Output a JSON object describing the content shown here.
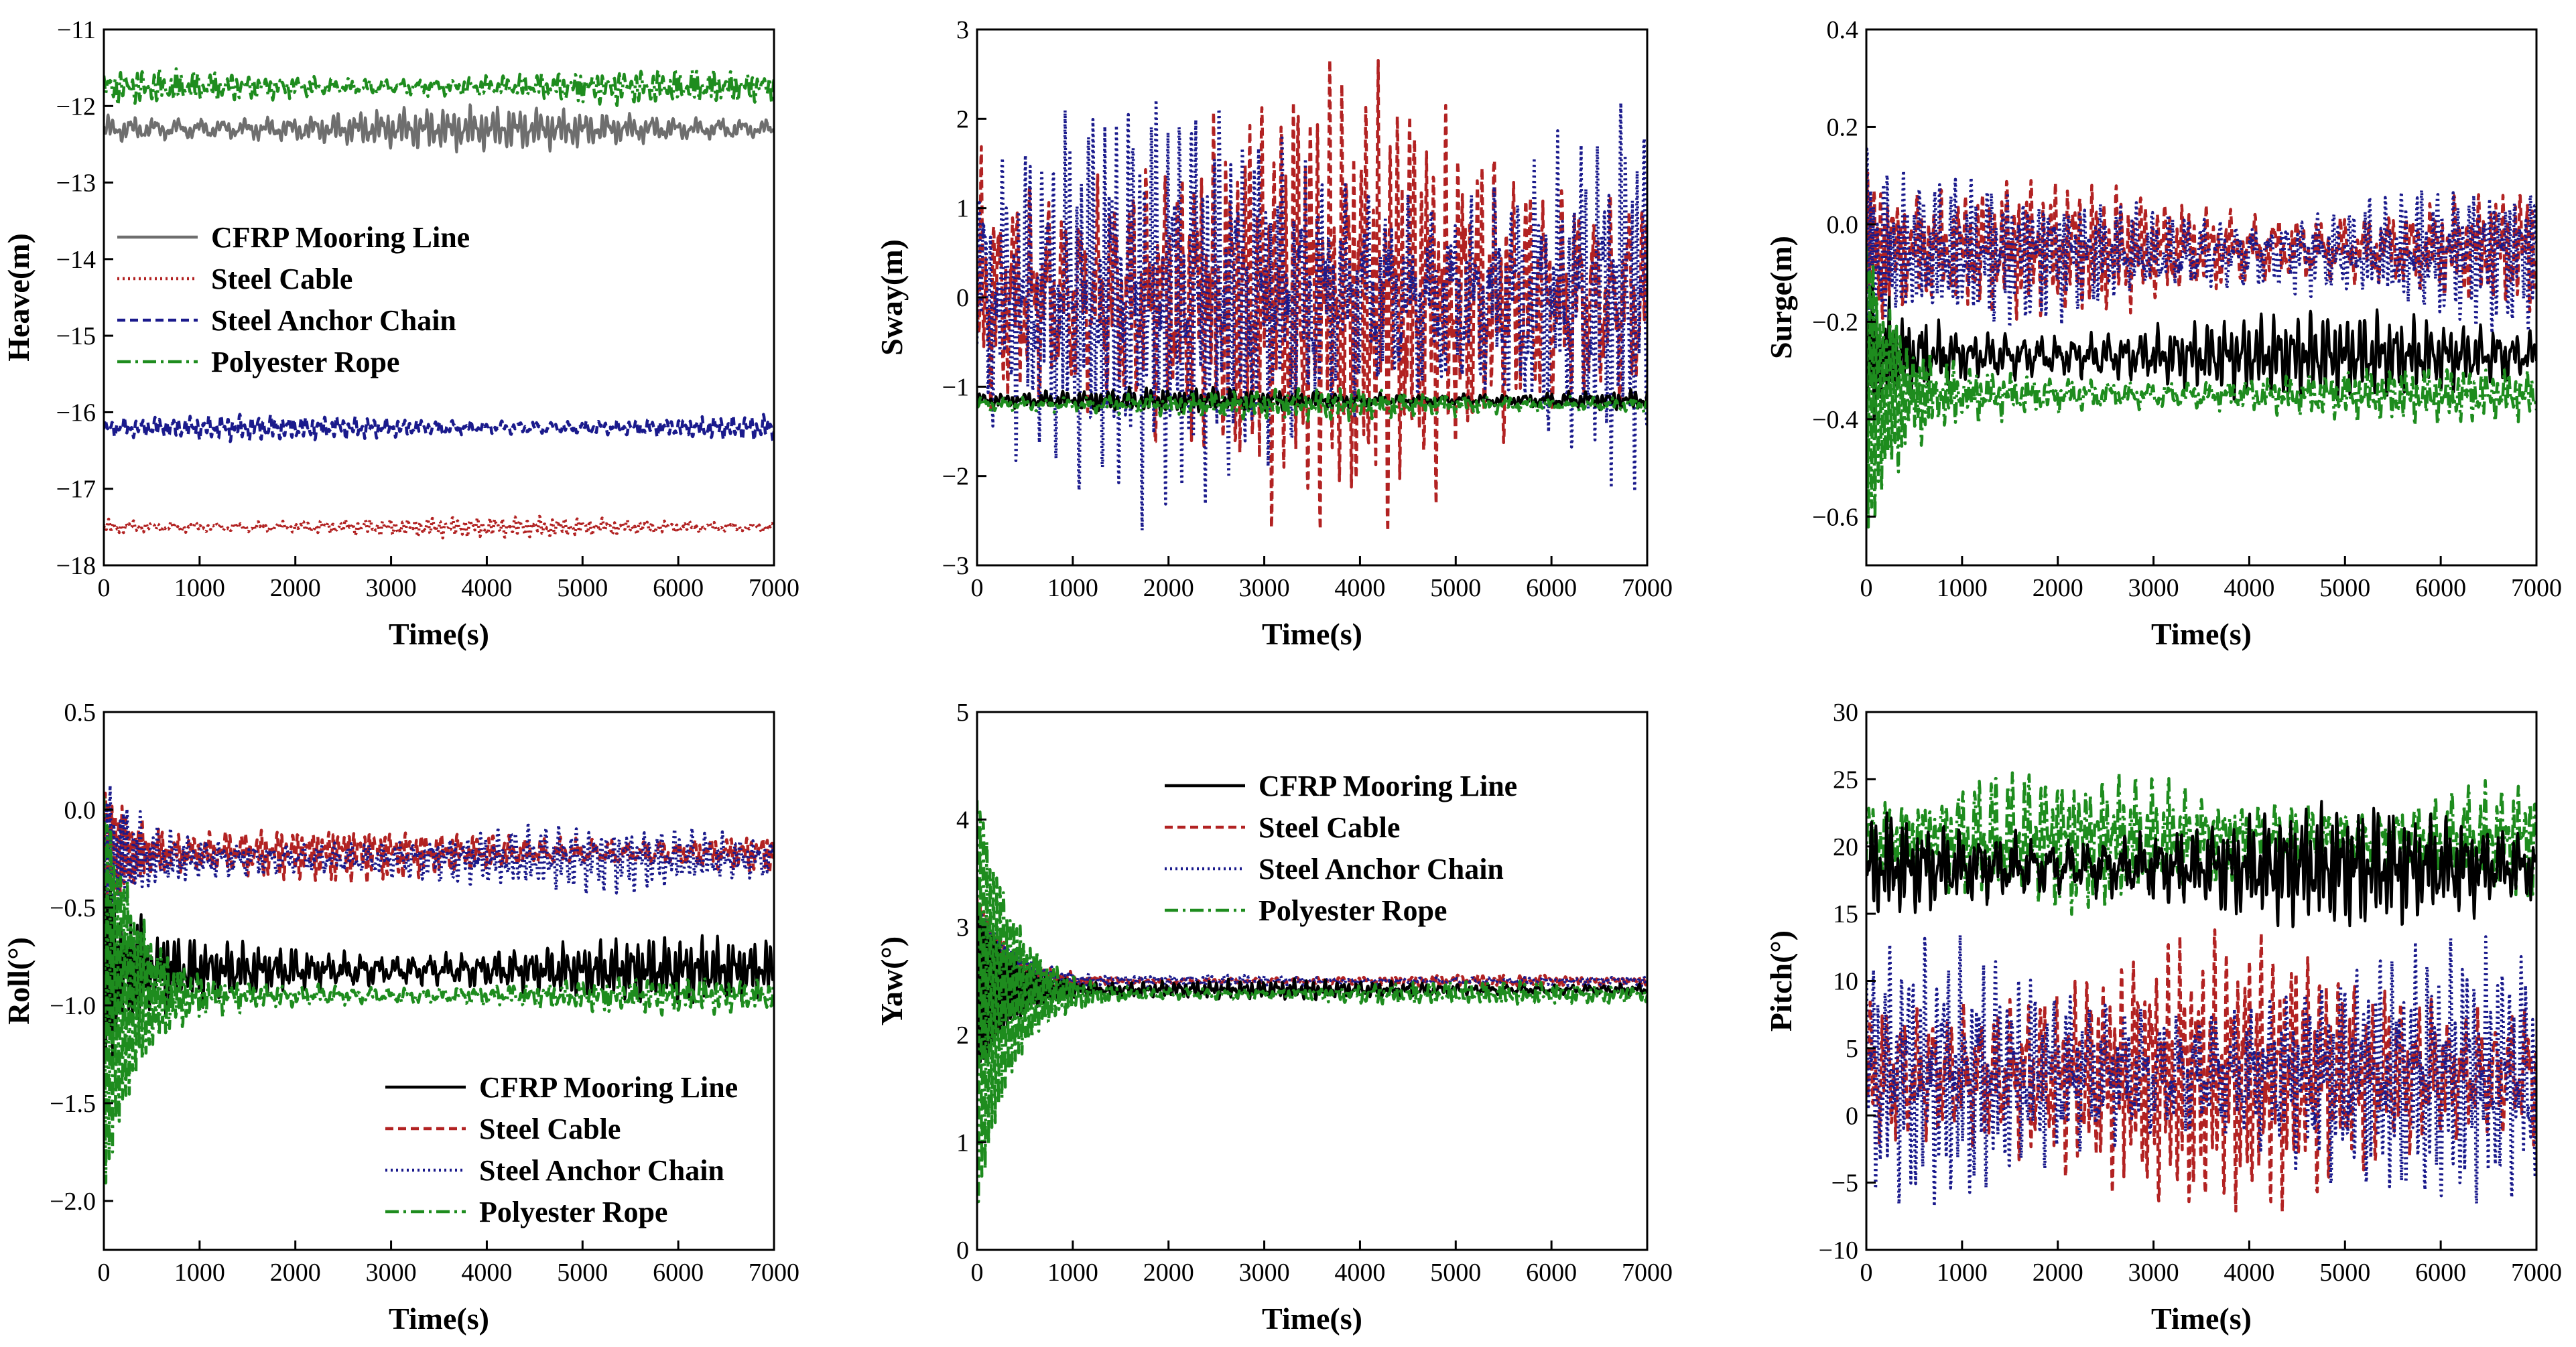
{
  "figure": {
    "xlabel": "Time(s)",
    "series_names": [
      "CFRP Mooring Line",
      "Steel Cable",
      "Steel Anchor Chain",
      "Polyester Rope"
    ]
  },
  "colors": {
    "cfrp_gray": "#6e6e6e",
    "cfrp_black": "#000000",
    "steel_cable": "#b22222",
    "anchor_chain": "#1a1a8c",
    "polyester": "#1e8c1e"
  },
  "chart_data": [
    {
      "id": "heave",
      "type": "line",
      "ylabel": "Heave(m)",
      "xlabel": "Time(s)",
      "xlim": [
        0,
        7000
      ],
      "ylim": [
        -18,
        -11
      ],
      "xticks": [
        "0",
        "1000",
        "2000",
        "3000",
        "4000",
        "5000",
        "6000",
        "7000"
      ],
      "yticks": [
        "−18",
        "−17",
        "−16",
        "−15",
        "−14",
        "−13",
        "−12",
        "−11"
      ],
      "legend": "upper-left",
      "series": [
        {
          "name": "CFRP Mooring Line",
          "color": "#6e6e6e",
          "style": "solid",
          "mean": -12.3,
          "amplitude": 0.25,
          "transient": 0
        },
        {
          "name": "Steel Cable",
          "color": "#b22222",
          "style": "dotted",
          "mean": -17.5,
          "amplitude": 0.12,
          "transient": 0
        },
        {
          "name": "Steel Anchor Chain",
          "color": "#1a1a8c",
          "style": "dashed",
          "mean": -16.2,
          "amplitude": 0.15,
          "transient": 0
        },
        {
          "name": "Polyester Rope",
          "color": "#1e8c1e",
          "style": "dashdot",
          "mean": -11.75,
          "amplitude": 0.2,
          "transient": 0
        }
      ]
    },
    {
      "id": "sway",
      "type": "line",
      "ylabel": "Sway(m)",
      "xlabel": "Time(s)",
      "xlim": [
        0,
        7000
      ],
      "ylim": [
        -3,
        3
      ],
      "xticks": [
        "0",
        "1000",
        "2000",
        "3000",
        "4000",
        "5000",
        "6000",
        "7000"
      ],
      "yticks": [
        "−3",
        "−2",
        "−1",
        "0",
        "1",
        "2",
        "3"
      ],
      "legend": "none",
      "series": [
        {
          "name": "Steel Cable",
          "color": "#b22222",
          "style": "dashed",
          "mean": 0,
          "amplitude": 2.2,
          "transient": 0
        },
        {
          "name": "Steel Anchor Chain",
          "color": "#1a1a8c",
          "style": "dotted",
          "mean": 0,
          "amplitude": 2.0,
          "transient": 0
        },
        {
          "name": "CFRP Mooring Line",
          "color": "#000000",
          "style": "solid",
          "mean": -1.15,
          "amplitude": 0.12,
          "transient": 0
        },
        {
          "name": "Polyester Rope",
          "color": "#1e8c1e",
          "style": "dashdot",
          "mean": -1.2,
          "amplitude": 0.15,
          "transient": 0
        }
      ]
    },
    {
      "id": "surge",
      "type": "line",
      "ylabel": "Surge(m)",
      "xlabel": "Time(s)",
      "xlim": [
        0,
        7000
      ],
      "ylim": [
        -0.7,
        0.4
      ],
      "xticks": [
        "0",
        "1000",
        "2000",
        "3000",
        "4000",
        "5000",
        "6000",
        "7000"
      ],
      "yticks": [
        "−0.6",
        "−0.4",
        "−0.2",
        "0.0",
        "0.2",
        "0.4"
      ],
      "legend": "none",
      "series": [
        {
          "name": "Steel Cable",
          "color": "#b22222",
          "style": "dashed",
          "mean": -0.05,
          "amplitude": 0.12,
          "transient": 0.12
        },
        {
          "name": "Steel Anchor Chain",
          "color": "#1a1a8c",
          "style": "dotted",
          "mean": -0.06,
          "amplitude": 0.13,
          "transient": 0.12
        },
        {
          "name": "CFRP Mooring Line",
          "color": "#000000",
          "style": "solid",
          "mean": -0.27,
          "amplitude": 0.08,
          "transient": 0.1
        },
        {
          "name": "Polyester Rope",
          "color": "#1e8c1e",
          "style": "dashdot",
          "mean": -0.35,
          "amplitude": 0.05,
          "transient": 0.28
        }
      ]
    },
    {
      "id": "roll",
      "type": "line",
      "ylabel": "Roll(°)",
      "xlabel": "Time(s)",
      "xlim": [
        0,
        7000
      ],
      "ylim": [
        -2.25,
        0.5
      ],
      "xticks": [
        "0",
        "1000",
        "2000",
        "3000",
        "4000",
        "5000",
        "6000",
        "7000"
      ],
      "yticks": [
        "−2.0",
        "−1.5",
        "−1.0",
        "−0.5",
        "0.0",
        "0.5"
      ],
      "legend": "lower-right",
      "series": [
        {
          "name": "Steel Cable",
          "color": "#b22222",
          "style": "dashed",
          "mean": -0.22,
          "amplitude": 0.12,
          "transient": 0.3
        },
        {
          "name": "Steel Anchor Chain",
          "color": "#1a1a8c",
          "style": "dotted",
          "mean": -0.25,
          "amplitude": 0.15,
          "transient": 0.3
        },
        {
          "name": "CFRP Mooring Line",
          "color": "#000000",
          "style": "solid",
          "mean": -0.82,
          "amplitude": 0.15,
          "transient": 0.4
        },
        {
          "name": "Polyester Rope",
          "color": "#1e8c1e",
          "style": "dashdot",
          "mean": -0.95,
          "amplitude": 0.08,
          "transient": 1.0
        }
      ]
    },
    {
      "id": "yaw",
      "type": "line",
      "ylabel": "Yaw(°)",
      "xlabel": "Time(s)",
      "xlim": [
        0,
        7000
      ],
      "ylim": [
        0,
        5
      ],
      "xticks": [
        "0",
        "1000",
        "2000",
        "3000",
        "4000",
        "5000",
        "6000",
        "7000"
      ],
      "yticks": [
        "0",
        "1",
        "2",
        "3",
        "4",
        "5"
      ],
      "legend": "upper-right",
      "series": [
        {
          "name": "Steel Cable",
          "color": "#b22222",
          "style": "dashed",
          "mean": 2.5,
          "amplitude": 0.05,
          "transient": 0.8
        },
        {
          "name": "Steel Anchor Chain",
          "color": "#1a1a8c",
          "style": "dotted",
          "mean": 2.5,
          "amplitude": 0.05,
          "transient": 0.8
        },
        {
          "name": "CFRP Mooring Line",
          "color": "#000000",
          "style": "solid",
          "mean": 2.42,
          "amplitude": 0.08,
          "transient": 0.8
        },
        {
          "name": "Polyester Rope",
          "color": "#1e8c1e",
          "style": "dashdot",
          "mean": 2.38,
          "amplitude": 0.1,
          "transient": 2.0
        }
      ]
    },
    {
      "id": "pitch",
      "type": "line",
      "ylabel": "Pitch(°)",
      "xlabel": "Time(s)",
      "xlim": [
        0,
        7000
      ],
      "ylim": [
        -10,
        30
      ],
      "xticks": [
        "0",
        "1000",
        "2000",
        "3000",
        "4000",
        "5000",
        "6000",
        "7000"
      ],
      "yticks": [
        "−10",
        "−5",
        "0",
        "5",
        "10",
        "15",
        "20",
        "25",
        "30"
      ],
      "legend": "none",
      "series": [
        {
          "name": "Steel Cable",
          "color": "#b22222",
          "style": "dashed",
          "mean": 3,
          "amplitude": 9,
          "transient": 0
        },
        {
          "name": "Steel Anchor Chain",
          "color": "#1a1a8c",
          "style": "dotted",
          "mean": 3,
          "amplitude": 8.5,
          "transient": 0
        },
        {
          "name": "Polyester Rope",
          "color": "#1e8c1e",
          "style": "dashdot",
          "mean": 20.5,
          "amplitude": 4.5,
          "transient": 0
        },
        {
          "name": "CFRP Mooring Line",
          "color": "#000000",
          "style": "solid",
          "mean": 18.5,
          "amplitude": 4,
          "transient": 0
        }
      ]
    }
  ]
}
